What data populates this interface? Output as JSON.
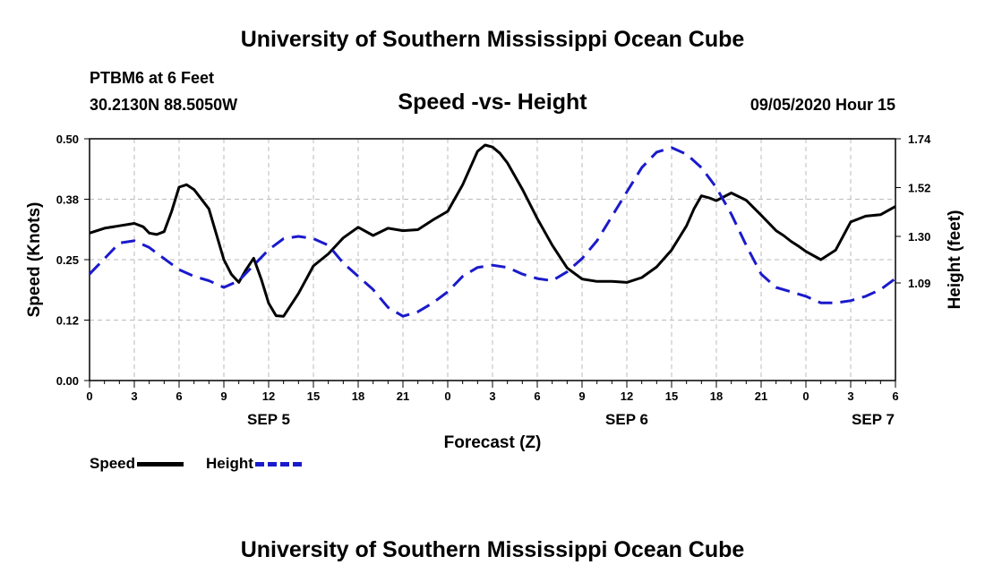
{
  "header": {
    "title": "University of Southern Mississippi Ocean Cube",
    "station": "PTBM6 at 6 Feet",
    "coords": "30.2130N 88.5050W",
    "subtitle": "Speed -vs- Height",
    "datestamp": "09/05/2020 Hour 15"
  },
  "footer": {
    "title": "University of Southern Mississippi Ocean Cube"
  },
  "legend": {
    "speed_label": "Speed",
    "height_label": "Height"
  },
  "colors": {
    "speed": "#000000",
    "height": "#1a1acc",
    "grid": "#bbbbbb"
  },
  "chart_data": {
    "type": "line",
    "title": "Speed -vs- Height",
    "xlabel": "Forecast (Z)",
    "ylabel": "Speed (Knots)",
    "ylabel_right": "Height (feet)",
    "grid": true,
    "x_unit": "hours since SEP 5 00Z",
    "xlim": [
      0,
      54
    ],
    "x_ticks": [
      0,
      3,
      6,
      9,
      12,
      15,
      18,
      21,
      24,
      27,
      30,
      33,
      36,
      39,
      42,
      45,
      48,
      51,
      54
    ],
    "x_tick_labels": [
      "0",
      "3",
      "6",
      "9",
      "12",
      "15",
      "18",
      "21",
      "0",
      "3",
      "6",
      "9",
      "12",
      "15",
      "18",
      "21",
      "0",
      "3",
      "6"
    ],
    "date_labels": [
      {
        "x": 12,
        "label": "SEP 5"
      },
      {
        "x": 36,
        "label": "SEP 6"
      },
      {
        "x": 52.5,
        "label": "SEP 7"
      }
    ],
    "ylim": [
      0,
      0.5
    ],
    "y_ticks": [
      0,
      0.125,
      0.25,
      0.375,
      0.5
    ],
    "y_tick_labels": [
      "0.00",
      "0.12",
      "0.25",
      "0.38",
      "0.50"
    ],
    "ylim_right": [
      0.65,
      1.74
    ],
    "y_ticks_right": [
      1.09,
      1.3,
      1.52,
      1.74
    ],
    "y_tick_labels_right": [
      "1.09",
      "1.30",
      "1.52",
      "1.74"
    ],
    "series": [
      {
        "name": "Speed",
        "axis": "left",
        "style": "solid",
        "x": [
          0,
          1,
          2,
          3,
          3.6,
          4,
          4.5,
          5,
          5.5,
          6,
          6.5,
          7,
          8,
          9,
          9.5,
          10,
          10.5,
          11,
          11.5,
          12,
          12.5,
          13,
          14,
          15,
          16,
          17,
          18,
          19,
          20,
          21,
          22,
          23,
          24,
          25,
          26,
          26.5,
          27,
          27.5,
          28,
          29,
          30,
          31,
          32,
          33,
          34,
          35,
          36,
          37,
          38,
          39,
          40,
          40.5,
          41,
          41.5,
          42,
          43,
          44,
          45,
          46,
          46.5,
          47,
          47.5,
          48,
          49,
          50,
          51,
          52,
          53,
          54
        ],
        "values": [
          0.305,
          0.315,
          0.32,
          0.325,
          0.318,
          0.305,
          0.302,
          0.308,
          0.35,
          0.4,
          0.405,
          0.395,
          0.355,
          0.25,
          0.22,
          0.203,
          0.23,
          0.253,
          0.21,
          0.16,
          0.134,
          0.133,
          0.18,
          0.237,
          0.262,
          0.295,
          0.317,
          0.3,
          0.315,
          0.31,
          0.312,
          0.332,
          0.35,
          0.405,
          0.474,
          0.487,
          0.483,
          0.47,
          0.45,
          0.396,
          0.335,
          0.28,
          0.233,
          0.21,
          0.205,
          0.205,
          0.203,
          0.213,
          0.235,
          0.27,
          0.32,
          0.355,
          0.382,
          0.378,
          0.372,
          0.388,
          0.373,
          0.342,
          0.31,
          0.3,
          0.288,
          0.278,
          0.267,
          0.25,
          0.27,
          0.328,
          0.34,
          0.343,
          0.36
        ]
      },
      {
        "name": "Height",
        "axis": "right",
        "style": "dashed",
        "x": [
          0,
          1,
          2,
          3,
          4,
          5,
          6,
          7,
          8,
          9,
          10,
          11,
          12,
          13,
          14,
          15,
          16,
          17,
          18,
          19,
          20,
          21,
          22,
          23,
          24,
          25,
          26,
          27,
          28,
          29,
          30,
          31,
          32,
          33,
          34,
          35,
          36,
          37,
          38,
          39,
          40,
          41,
          42,
          43,
          44,
          45,
          46,
          47,
          48,
          49,
          50,
          51,
          52,
          53,
          54
        ],
        "values": [
          1.13,
          1.2,
          1.27,
          1.28,
          1.25,
          1.2,
          1.15,
          1.12,
          1.1,
          1.07,
          1.1,
          1.17,
          1.24,
          1.29,
          1.3,
          1.29,
          1.26,
          1.18,
          1.12,
          1.06,
          0.98,
          0.94,
          0.96,
          1.0,
          1.05,
          1.12,
          1.16,
          1.17,
          1.16,
          1.13,
          1.11,
          1.1,
          1.14,
          1.2,
          1.28,
          1.39,
          1.5,
          1.61,
          1.68,
          1.7,
          1.67,
          1.61,
          1.52,
          1.4,
          1.26,
          1.13,
          1.07,
          1.05,
          1.03,
          1.0,
          1.0,
          1.01,
          1.03,
          1.06,
          1.11
        ]
      }
    ]
  }
}
